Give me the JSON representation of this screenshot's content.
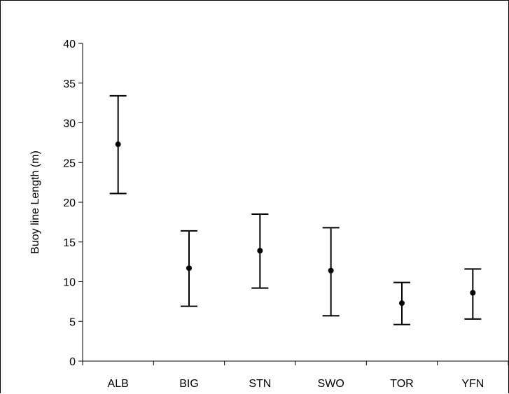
{
  "chart_data": {
    "type": "scatter",
    "title": "",
    "xlabel": "",
    "ylabel": "Buoy line Length (m)",
    "categories": [
      "ALB",
      "BIG",
      "STN",
      "SWO",
      "TOR",
      "YFN"
    ],
    "series": [
      {
        "values": [
          27.3,
          11.7,
          13.9,
          11.4,
          7.3,
          8.6
        ],
        "lower": [
          21.1,
          6.9,
          9.2,
          5.7,
          4.6,
          5.3
        ],
        "upper": [
          33.4,
          16.4,
          18.5,
          16.8,
          9.9,
          11.6
        ]
      }
    ],
    "ylim": [
      0,
      40
    ],
    "yticks": [
      0,
      5,
      10,
      15,
      20,
      25,
      30,
      35,
      40
    ],
    "error_bars": true,
    "grid": false,
    "legend": "none",
    "colors": {
      "axis": "#000000",
      "marker": "#000000"
    }
  }
}
